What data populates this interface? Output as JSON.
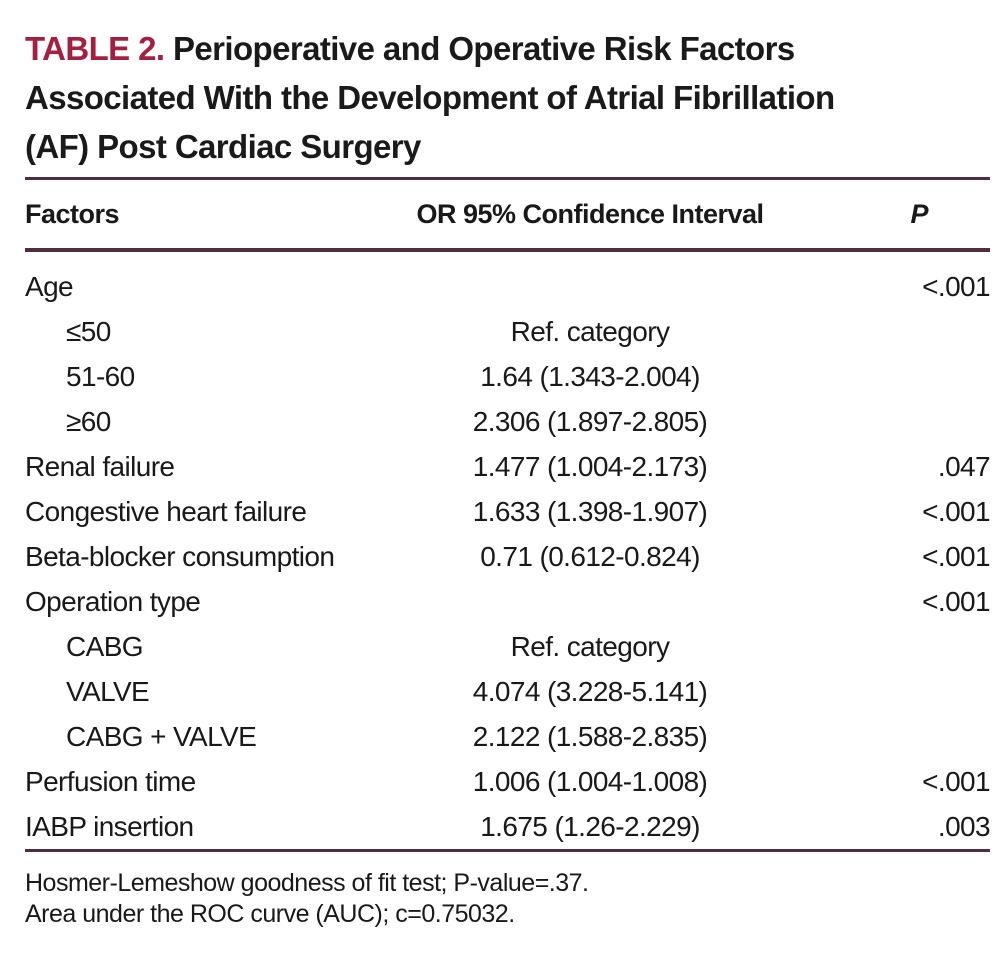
{
  "title": {
    "label": "TABLE 2.",
    "lines": [
      "Perioperative and Operative Risk Factors",
      "Associated With the Development of Atrial Fibrillation",
      "(AF) Post Cardiac Surgery"
    ]
  },
  "columns": {
    "factors": "Factors",
    "ci": "OR 95% Confidence Interval",
    "p": "P"
  },
  "rows": [
    {
      "factor": "Age",
      "ci": "",
      "p": "<.001"
    },
    {
      "factor": "≤50",
      "ci": "Ref. category",
      "p": ""
    },
    {
      "factor": "51-60",
      "ci": "1.64 (1.343-2.004)",
      "p": ""
    },
    {
      "factor": "≥60",
      "ci": "2.306 (1.897-2.805)",
      "p": ""
    },
    {
      "factor": "Renal failure",
      "ci": "1.477 (1.004-2.173)",
      "p": ".047"
    },
    {
      "factor": "Congestive heart failure",
      "ci": "1.633 (1.398-1.907)",
      "p": "<.001"
    },
    {
      "factor": "Beta-blocker consumption",
      "ci": "0.71 (0.612-0.824)",
      "p": "<.001"
    },
    {
      "factor": "Operation type",
      "ci": "",
      "p": "<.001"
    },
    {
      "factor": "CABG",
      "ci": "Ref. category",
      "p": ""
    },
    {
      "factor": "VALVE",
      "ci": "4.074 (3.228-5.141)",
      "p": ""
    },
    {
      "factor": "CABG + VALVE",
      "ci": "2.122 (1.588-2.835)",
      "p": ""
    },
    {
      "factor": "Perfusion time",
      "ci": "1.006 (1.004-1.008)",
      "p": "<.001"
    },
    {
      "factor": "IABP insertion",
      "ci": "1.675 (1.26-2.229)",
      "p": ".003"
    }
  ],
  "footnotes": [
    "Hosmer-Lemeshow goodness of fit test; P-value=.37.",
    "Area under the ROC curve (AUC); c=0.75032."
  ],
  "colors": {
    "accent": "#a42040",
    "rule": "#4f2e3d",
    "text": "#191919",
    "background": "#ffffff"
  }
}
